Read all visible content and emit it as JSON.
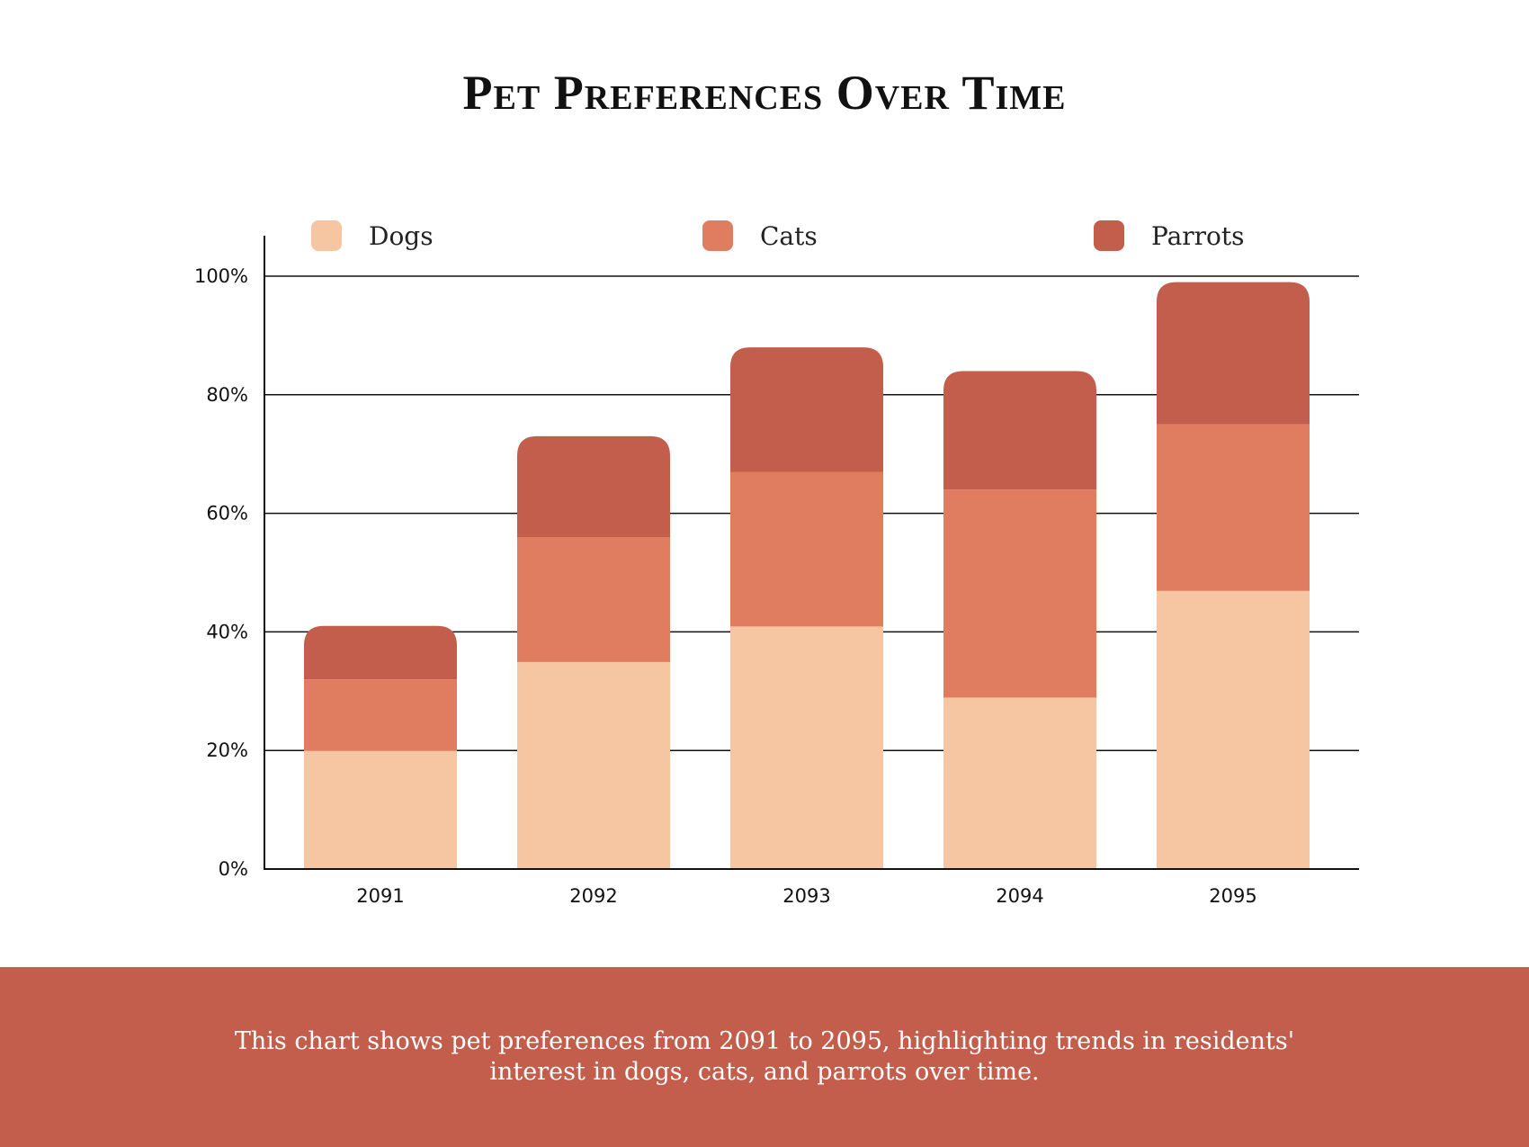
{
  "chart_data": {
    "type": "bar",
    "stacked": true,
    "title": "Pet Preferences Over Time",
    "categories": [
      "2091",
      "2092",
      "2093",
      "2094",
      "2095"
    ],
    "series": [
      {
        "name": "Dogs",
        "color": "#f6c5a2",
        "values": [
          20,
          35,
          41,
          29,
          47
        ]
      },
      {
        "name": "Cats",
        "color": "#e07d60",
        "values": [
          12,
          21,
          26,
          35,
          28
        ]
      },
      {
        "name": "Parrots",
        "color": "#c25e4b",
        "values": [
          9,
          17,
          21,
          20,
          24
        ]
      }
    ],
    "ylim": [
      0,
      100
    ],
    "yticks": [
      "0%",
      "20%",
      "40%",
      "60%",
      "80%",
      "100%"
    ],
    "grid": true,
    "legend": "top"
  },
  "footer": {
    "text": "This chart shows pet preferences from 2091 to 2095, highlighting trends in residents' interest in dogs, cats, and parrots over time."
  }
}
